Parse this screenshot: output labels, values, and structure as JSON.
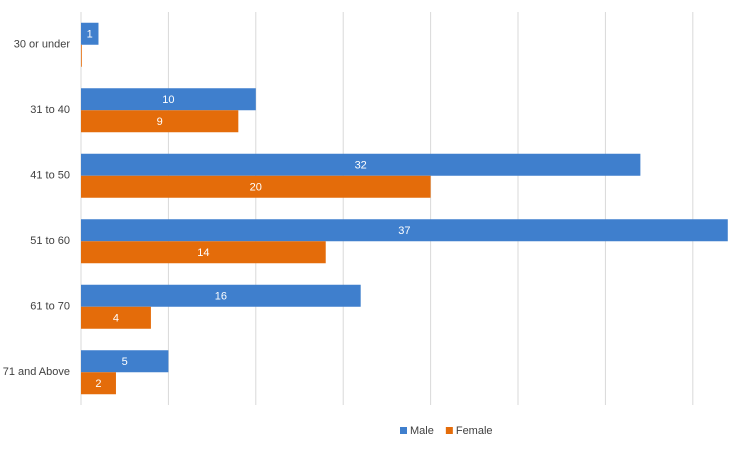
{
  "chart_data": {
    "type": "bar",
    "orientation": "horizontal",
    "categories": [
      "30 or under",
      "31 to 40",
      "41 to 50",
      "51 to 60",
      "61 to 70",
      "71 and Above"
    ],
    "series": [
      {
        "name": "Male",
        "color": "#3f7fcd",
        "values": [
          1,
          10,
          32,
          37,
          16,
          5
        ]
      },
      {
        "name": "Female",
        "color": "#e46c0a",
        "values": [
          0,
          9,
          20,
          14,
          4,
          2
        ]
      }
    ],
    "xlim": [
      0,
      38.5
    ],
    "xticks": [
      0,
      5,
      10,
      15,
      20,
      25,
      30,
      35
    ],
    "grid": true,
    "legend": "bottom"
  }
}
